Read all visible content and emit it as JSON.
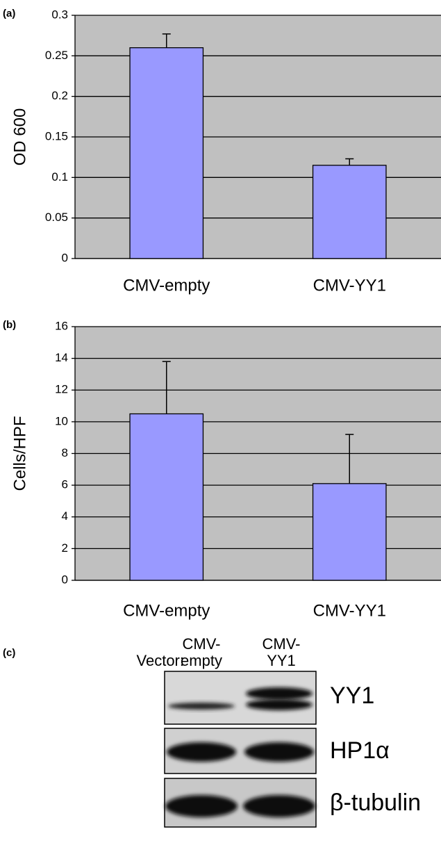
{
  "chart_data": [
    {
      "type": "bar",
      "panel": "(a)",
      "ylabel": "OD 600",
      "categories": [
        "CMV-empty",
        "CMV-YY1"
      ],
      "values": [
        0.26,
        0.115
      ],
      "errors": [
        0.017,
        0.008
      ],
      "color": "#9999ff",
      "background": "#c0c0c0",
      "ylim": [
        0,
        0.3
      ],
      "yticks": [
        0,
        0.05,
        0.1,
        0.15,
        0.2,
        0.25,
        0.3
      ],
      "grid": true
    },
    {
      "type": "bar",
      "panel": "(b)",
      "ylabel": "Cells/HPF",
      "categories": [
        "CMV-empty",
        "CMV-YY1"
      ],
      "values": [
        10.5,
        6.1
      ],
      "errors": [
        3.3,
        3.1
      ],
      "color": "#9999ff",
      "background": "#c0c0c0",
      "ylim": [
        0,
        16
      ],
      "yticks": [
        0,
        2,
        4,
        6,
        8,
        10,
        12,
        14,
        16
      ],
      "grid": true
    }
  ],
  "blot": {
    "panel": "(c)",
    "row_header": "Vector:",
    "lanes": [
      [
        "CMV-",
        "empty"
      ],
      [
        "CMV-",
        "YY1"
      ]
    ],
    "bands": [
      "YY1",
      "HP1α",
      "β-tubulin"
    ]
  }
}
